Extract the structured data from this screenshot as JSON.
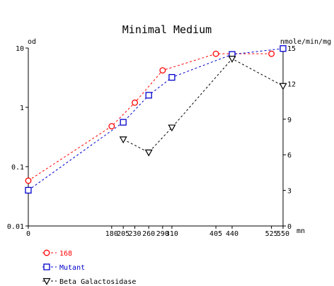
{
  "chart_data": {
    "type": "line",
    "title": "Minimal Medium",
    "ylabel_left": "od",
    "ylabel_right": "nmole/min/mg",
    "xlabel": "mn",
    "yscale_left": "log",
    "ylim_left": [
      0.01,
      10
    ],
    "yticks_left": [
      "0.01",
      "0.1",
      "1",
      "10"
    ],
    "ylim_right": [
      0,
      15
    ],
    "yticks_right": [
      "0",
      "3",
      "6",
      "9",
      "12",
      "15"
    ],
    "xlim": [
      0,
      550
    ],
    "xticks": [
      "0",
      "180",
      "205",
      "230",
      "260",
      "290",
      "310",
      "405",
      "440",
      "525",
      "550"
    ],
    "grid": false,
    "legend_position": "bottom-left",
    "series": [
      {
        "name": "168",
        "color": "#ff0000",
        "marker": "circle",
        "axis": "left",
        "x": [
          0,
          180,
          230,
          290,
          405,
          525
        ],
        "y": [
          0.058,
          0.48,
          1.2,
          4.2,
          8.0,
          8.0
        ]
      },
      {
        "name": "Mutant",
        "color": "#0000cc",
        "marker": "square",
        "axis": "left",
        "x": [
          0,
          205,
          260,
          310,
          440,
          550
        ],
        "y": [
          0.04,
          0.56,
          1.6,
          3.2,
          7.8,
          9.8
        ]
      },
      {
        "name": "Beta Galactosidase",
        "color": "#000000",
        "marker": "triangle-down",
        "axis": "right",
        "x": [
          205,
          260,
          310,
          440,
          550
        ],
        "y": [
          7.3,
          6.2,
          8.3,
          14.1,
          11.8
        ]
      }
    ]
  }
}
